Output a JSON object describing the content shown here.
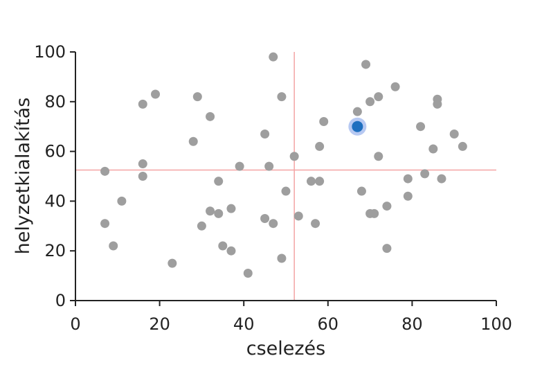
{
  "chart_data": {
    "type": "scatter",
    "xlabel": "cselezés",
    "ylabel": "helyzetkialakítás",
    "xlim": [
      0,
      100
    ],
    "ylim": [
      0,
      100
    ],
    "xticks": [
      "0",
      "20",
      "40",
      "60",
      "80",
      "100"
    ],
    "yticks": [
      "0",
      "20",
      "40",
      "60",
      "80",
      "100"
    ],
    "grid": false,
    "reference_lines": {
      "x": 52,
      "y": 52.5,
      "color": "#f4a3a3"
    },
    "point_color": "#9e9e9e",
    "highlight_color": "#1f6fbf",
    "highlight_halo_color": "#aabff0",
    "points": [
      {
        "x": 7,
        "y": 52
      },
      {
        "x": 7,
        "y": 31
      },
      {
        "x": 9,
        "y": 22
      },
      {
        "x": 11,
        "y": 40
      },
      {
        "x": 16,
        "y": 79
      },
      {
        "x": 16,
        "y": 55
      },
      {
        "x": 16,
        "y": 50
      },
      {
        "x": 19,
        "y": 83
      },
      {
        "x": 23,
        "y": 15
      },
      {
        "x": 28,
        "y": 64
      },
      {
        "x": 29,
        "y": 82
      },
      {
        "x": 30,
        "y": 30
      },
      {
        "x": 32,
        "y": 74
      },
      {
        "x": 32,
        "y": 36
      },
      {
        "x": 34,
        "y": 48
      },
      {
        "x": 34,
        "y": 35
      },
      {
        "x": 35,
        "y": 22
      },
      {
        "x": 37,
        "y": 37
      },
      {
        "x": 37,
        "y": 20
      },
      {
        "x": 39,
        "y": 54
      },
      {
        "x": 41,
        "y": 11
      },
      {
        "x": 45,
        "y": 67
      },
      {
        "x": 45,
        "y": 33
      },
      {
        "x": 46,
        "y": 54
      },
      {
        "x": 47,
        "y": 98
      },
      {
        "x": 47,
        "y": 31
      },
      {
        "x": 49,
        "y": 82
      },
      {
        "x": 49,
        "y": 17
      },
      {
        "x": 50,
        "y": 44
      },
      {
        "x": 52,
        "y": 58
      },
      {
        "x": 53,
        "y": 34
      },
      {
        "x": 56,
        "y": 48
      },
      {
        "x": 57,
        "y": 31
      },
      {
        "x": 58,
        "y": 62
      },
      {
        "x": 58,
        "y": 48
      },
      {
        "x": 59,
        "y": 72
      },
      {
        "x": 67,
        "y": 76
      },
      {
        "x": 68,
        "y": 44
      },
      {
        "x": 69,
        "y": 95
      },
      {
        "x": 70,
        "y": 80
      },
      {
        "x": 70,
        "y": 35
      },
      {
        "x": 71,
        "y": 35
      },
      {
        "x": 72,
        "y": 82
      },
      {
        "x": 72,
        "y": 58
      },
      {
        "x": 74,
        "y": 38
      },
      {
        "x": 74,
        "y": 21
      },
      {
        "x": 76,
        "y": 86
      },
      {
        "x": 79,
        "y": 49
      },
      {
        "x": 79,
        "y": 42
      },
      {
        "x": 82,
        "y": 70
      },
      {
        "x": 83,
        "y": 51
      },
      {
        "x": 85,
        "y": 61
      },
      {
        "x": 86,
        "y": 81
      },
      {
        "x": 86,
        "y": 79
      },
      {
        "x": 87,
        "y": 49
      },
      {
        "x": 90,
        "y": 67
      },
      {
        "x": 92,
        "y": 62
      }
    ],
    "highlighted_point": {
      "x": 67,
      "y": 70
    }
  }
}
